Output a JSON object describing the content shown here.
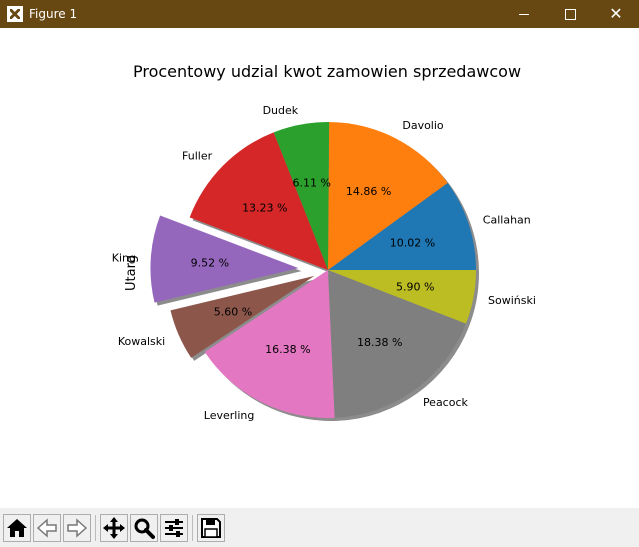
{
  "window": {
    "title": "Figure 1",
    "controls": {
      "minimize": "—",
      "maximize": "☐",
      "close": "✕"
    }
  },
  "toolbar": {
    "buttons": [
      {
        "name": "home-button",
        "icon": "home-icon"
      },
      {
        "name": "back-button",
        "icon": "back-arrow-icon"
      },
      {
        "name": "forward-button",
        "icon": "forward-arrow-icon"
      },
      {
        "name": "pan-button",
        "icon": "move-icon"
      },
      {
        "name": "zoom-button",
        "icon": "magnifier-icon"
      },
      {
        "name": "configure-subplots-button",
        "icon": "sliders-icon"
      },
      {
        "name": "save-button",
        "icon": "floppy-disk-icon"
      }
    ]
  },
  "chart_data": {
    "type": "pie",
    "title": "Procentowy udzial kwot zamowien sprzedawcow",
    "ylabel": "Utarg",
    "start_angle_deg": 0,
    "counterclockwise": true,
    "shadow": true,
    "slices": [
      {
        "label": "Callahan",
        "value": 10.02,
        "pct_label": "10.02 %",
        "color": "#1f77b4",
        "explode": 0
      },
      {
        "label": "Davolio",
        "value": 14.86,
        "pct_label": "14.86 %",
        "color": "#ff7f0e",
        "explode": 0
      },
      {
        "label": "Dudek",
        "value": 6.11,
        "pct_label": "6.11 %",
        "color": "#2ca02c",
        "explode": 0
      },
      {
        "label": "Fuller",
        "value": 13.23,
        "pct_label": "13.23 %",
        "color": "#d62728",
        "explode": 0
      },
      {
        "label": "King",
        "value": 9.52,
        "pct_label": "9.52 %",
        "color": "#9467bd",
        "explode": 0.2
      },
      {
        "label": "Kowalski",
        "value": 5.6,
        "pct_label": "5.60 %",
        "color": "#8c564b",
        "explode": 0.1
      },
      {
        "label": "Leverling",
        "value": 16.38,
        "pct_label": "16.38 %",
        "color": "#e377c2",
        "explode": 0
      },
      {
        "label": "Peacock",
        "value": 18.38,
        "pct_label": "18.38 %",
        "color": "#7f7f7f",
        "explode": 0
      },
      {
        "label": "Sowiński",
        "value": 5.9,
        "pct_label": "5.90 %",
        "color": "#bcbd22",
        "explode": 0
      }
    ]
  }
}
